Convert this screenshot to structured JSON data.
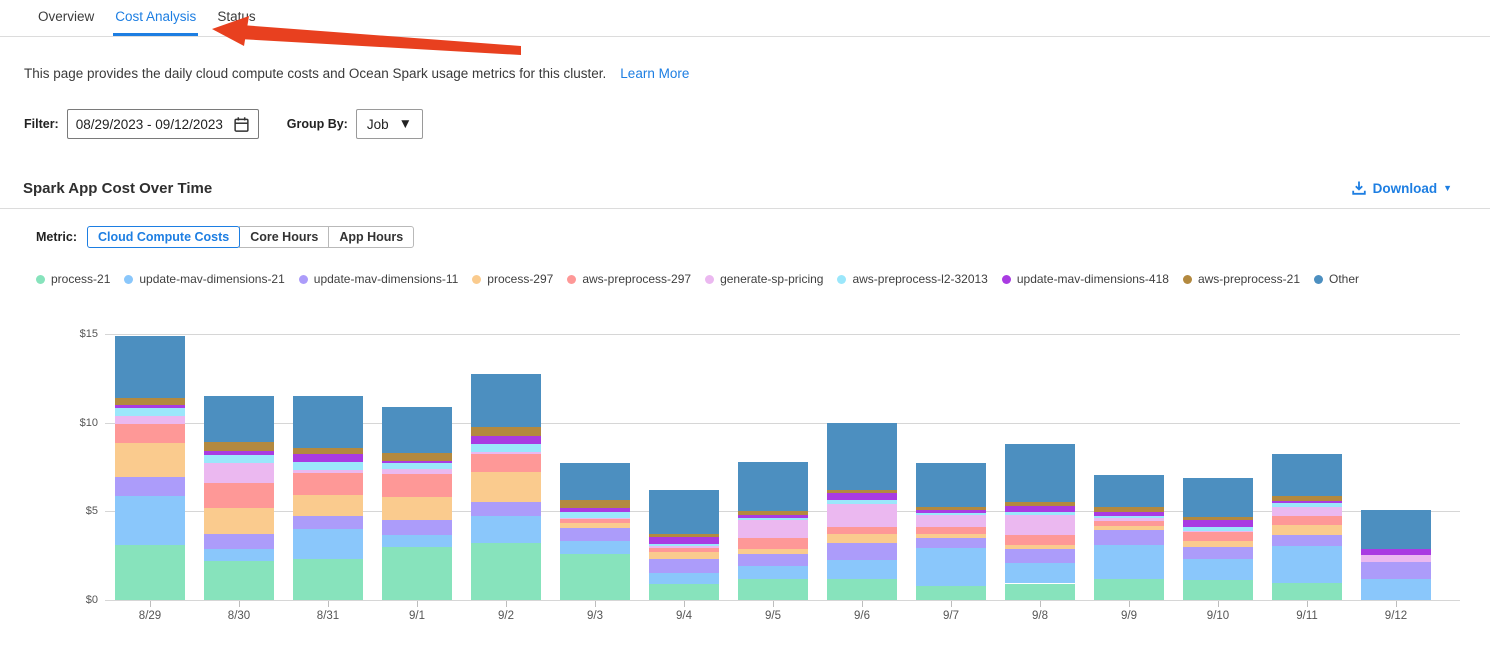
{
  "tabs": {
    "items": [
      {
        "label": "Overview",
        "active": false
      },
      {
        "label": "Cost Analysis",
        "active": true
      },
      {
        "label": "Status",
        "active": false
      }
    ]
  },
  "description": {
    "text": "This page provides the daily cloud compute costs and Ocean Spark usage metrics for this cluster.",
    "link_label": "Learn More"
  },
  "filter": {
    "label": "Filter:",
    "date_range": "08/29/2023  -  09/12/2023"
  },
  "group_by": {
    "label": "Group By:",
    "value": "Job"
  },
  "section": {
    "title": "Spark App Cost Over Time",
    "download_label": "Download"
  },
  "metric": {
    "label": "Metric:",
    "options": [
      {
        "label": "Cloud Compute Costs",
        "active": true
      },
      {
        "label": "Core Hours",
        "active": false
      },
      {
        "label": "App Hours",
        "active": false
      }
    ]
  },
  "colors": {
    "accent_blue": "#1d7ee2",
    "arrow_red": "#e8401f"
  },
  "chart_data": {
    "type": "bar",
    "stacked": true,
    "grid": true,
    "legend_position": "top",
    "ylim": [
      0,
      15
    ],
    "ytick_values": [
      0,
      5,
      10,
      15
    ],
    "ytick_labels": [
      "$0",
      "$5",
      "$10",
      "$15"
    ],
    "categories": [
      "8/29",
      "8/30",
      "8/31",
      "9/1",
      "9/2",
      "9/3",
      "9/4",
      "9/5",
      "9/6",
      "9/7",
      "9/8",
      "9/9",
      "9/10",
      "9/11",
      "9/12"
    ],
    "series": [
      {
        "name": "process-21",
        "color": "#87E3BC",
        "values": [
          3.1,
          2.2,
          2.3,
          3.0,
          3.2,
          2.6,
          0.9,
          1.16,
          1.16,
          0.79,
          0.93,
          1.16,
          1.1,
          0.97,
          0
        ]
      },
      {
        "name": "update-mav-dimensions-21",
        "color": "#8AC7FB",
        "values": [
          2.75,
          0.68,
          1.68,
          0.65,
          1.55,
          0.73,
          0.64,
          0.75,
          1.12,
          2.13,
          1.16,
          1.96,
          1.2,
          2.07,
          1.16
        ]
      },
      {
        "name": "update-mav-dimensions-11",
        "color": "#AC9CFA",
        "values": [
          1.1,
          0.84,
          0.75,
          0.88,
          0.79,
          0.75,
          0.75,
          0.71,
          0.95,
          0.6,
          0.77,
          0.8,
          0.69,
          0.6,
          0.99
        ]
      },
      {
        "name": "process-297",
        "color": "#FACB8E",
        "values": [
          1.9,
          1.45,
          1.2,
          1.3,
          1.65,
          0.28,
          0.43,
          0.28,
          0.5,
          0.19,
          0.26,
          0.24,
          0.32,
          0.6,
          0
        ]
      },
      {
        "name": "aws-preprocess-297",
        "color": "#FE9897",
        "values": [
          1.05,
          1.45,
          1.23,
          1.3,
          1.03,
          0.19,
          0.24,
          0.6,
          0.41,
          0.41,
          0.52,
          0.32,
          0.52,
          0.52,
          0
        ]
      },
      {
        "name": "generate-sp-pricing",
        "color": "#EBB8F0",
        "values": [
          0.5,
          1.13,
          0.19,
          0.24,
          0.15,
          0.05,
          0.07,
          1.0,
          1.3,
          0.65,
          1.16,
          0.13,
          0.05,
          0.5,
          0.41
        ]
      },
      {
        "name": "aws-preprocess-l2-32013",
        "color": "#9BE7FB",
        "values": [
          0.4,
          0.43,
          0.41,
          0.34,
          0.43,
          0.37,
          0.13,
          0.13,
          0.19,
          0.15,
          0.19,
          0.15,
          0.24,
          0.21,
          0
        ]
      },
      {
        "name": "update-mav-dimensions-418",
        "color": "#A93BE2",
        "values": [
          0.2,
          0.24,
          0.47,
          0.13,
          0.43,
          0.19,
          0.4,
          0.19,
          0.4,
          0.13,
          0.3,
          0.22,
          0.37,
          0.13,
          0.34
        ]
      },
      {
        "name": "aws-preprocess-21",
        "color": "#B3893F",
        "values": [
          0.4,
          0.5,
          0.32,
          0.43,
          0.5,
          0.47,
          0.15,
          0.19,
          0.19,
          0.19,
          0.22,
          0.24,
          0.19,
          0.24,
          0
        ]
      },
      {
        "name": "Other",
        "color": "#4C8FC0",
        "values": [
          3.5,
          2.57,
          2.95,
          2.62,
          3.0,
          2.1,
          2.5,
          2.8,
          3.75,
          2.5,
          3.27,
          1.83,
          2.19,
          2.37,
          2.15
        ]
      }
    ]
  }
}
